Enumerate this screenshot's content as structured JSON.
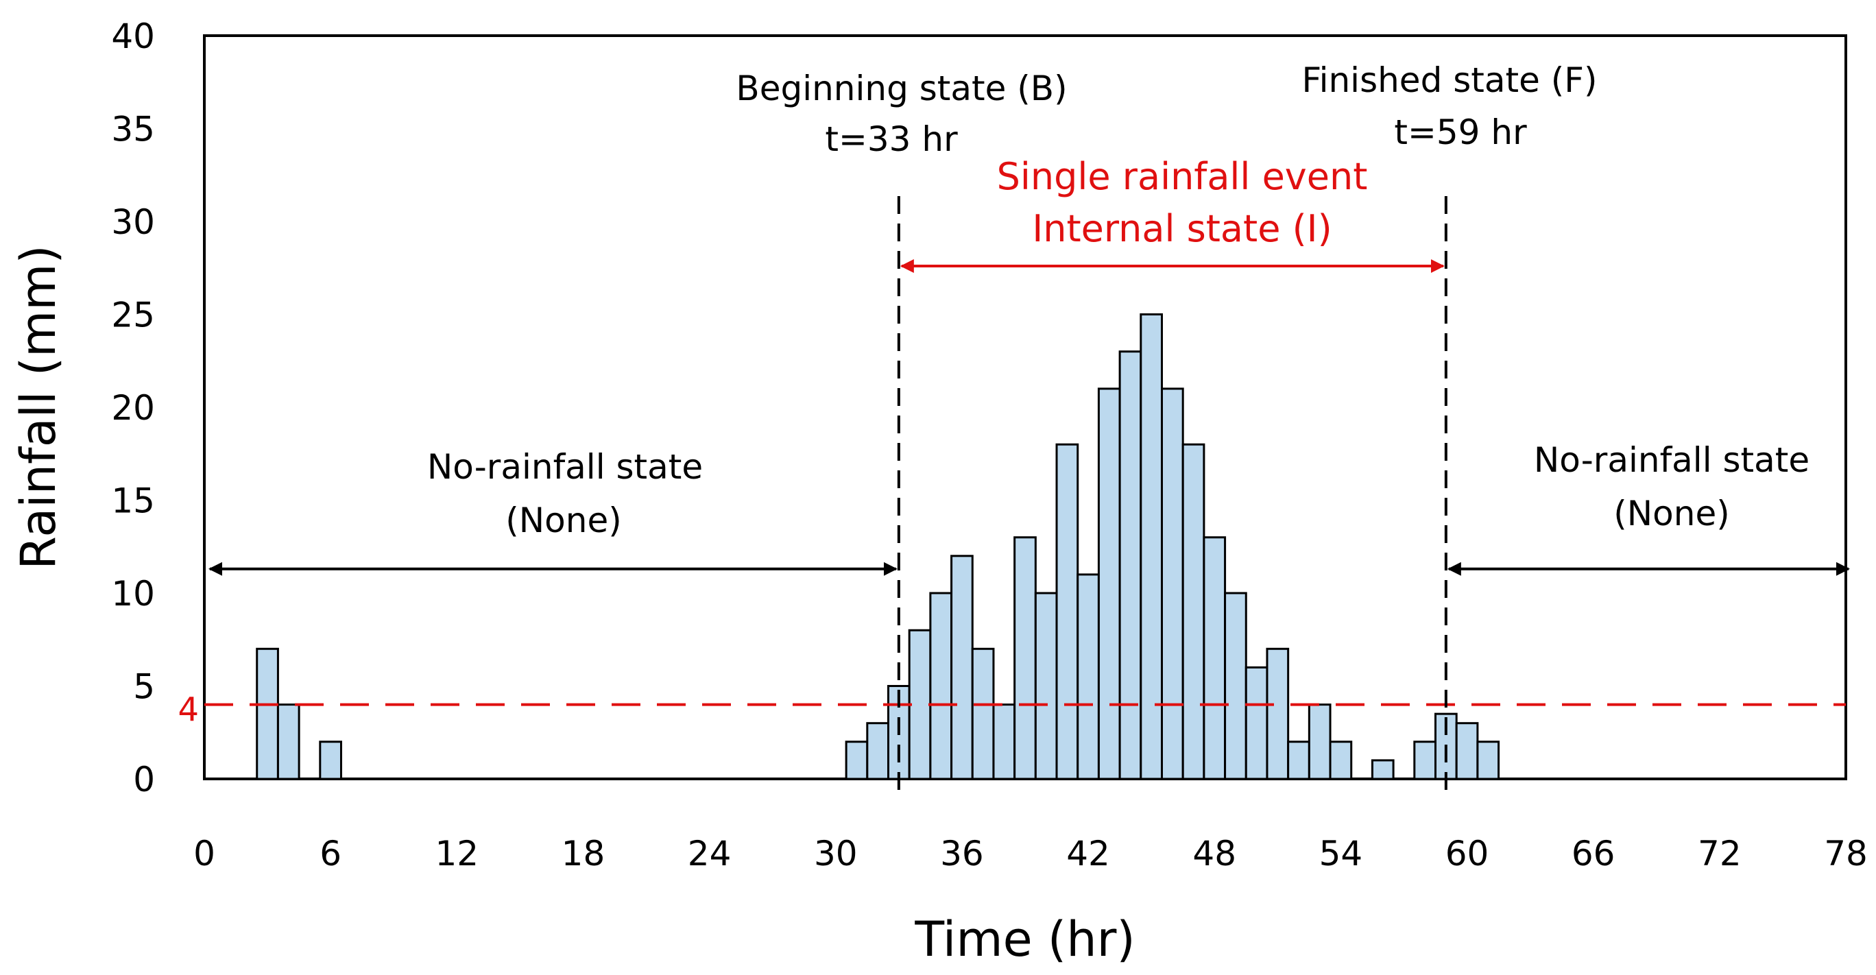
{
  "chart_data": {
    "type": "bar",
    "title": "",
    "xlabel": "Time (hr)",
    "ylabel": "Rainfall (mm)",
    "xlim": [
      0,
      78
    ],
    "ylim": [
      0,
      40
    ],
    "xticks": [
      "0",
      "6",
      "12",
      "18",
      "24",
      "30",
      "36",
      "42",
      "48",
      "54",
      "60",
      "66",
      "72",
      "78"
    ],
    "yticks": [
      "0",
      "5",
      "10",
      "15",
      "20",
      "25",
      "30",
      "35",
      "40"
    ],
    "bar_color": "#bcd9ee",
    "bars": [
      {
        "x": 3,
        "value": 7
      },
      {
        "x": 4,
        "value": 4
      },
      {
        "x": 6,
        "value": 2
      },
      {
        "x": 31,
        "value": 2
      },
      {
        "x": 32,
        "value": 3
      },
      {
        "x": 33,
        "value": 5
      },
      {
        "x": 34,
        "value": 8
      },
      {
        "x": 35,
        "value": 10
      },
      {
        "x": 36,
        "value": 12
      },
      {
        "x": 37,
        "value": 7
      },
      {
        "x": 38,
        "value": 4
      },
      {
        "x": 39,
        "value": 13
      },
      {
        "x": 40,
        "value": 10
      },
      {
        "x": 41,
        "value": 18
      },
      {
        "x": 42,
        "value": 11
      },
      {
        "x": 43,
        "value": 21
      },
      {
        "x": 44,
        "value": 23
      },
      {
        "x": 45,
        "value": 25
      },
      {
        "x": 46,
        "value": 21
      },
      {
        "x": 47,
        "value": 18
      },
      {
        "x": 48,
        "value": 13
      },
      {
        "x": 49,
        "value": 10
      },
      {
        "x": 50,
        "value": 6
      },
      {
        "x": 51,
        "value": 7
      },
      {
        "x": 52,
        "value": 2
      },
      {
        "x": 53,
        "value": 4
      },
      {
        "x": 54,
        "value": 2
      },
      {
        "x": 56,
        "value": 1
      },
      {
        "x": 58,
        "value": 2
      },
      {
        "x": 59,
        "value": 3.5
      },
      {
        "x": 60,
        "value": 3
      },
      {
        "x": 61,
        "value": 2
      }
    ],
    "threshold": {
      "value": 4,
      "label": "4",
      "color": "#e01010"
    },
    "markers": [
      {
        "name": "beginning",
        "x": 33,
        "label_line1": "Beginning state (B)",
        "label_line2": "t=33 hr"
      },
      {
        "name": "finished",
        "x": 59,
        "label_line1": "Finished state (F)",
        "label_line2": "t=59 hr"
      }
    ],
    "annotations": {
      "left_state_line1": "No-rainfall state",
      "left_state_line2": "(None)",
      "right_state_line1": "No-rainfall state",
      "right_state_line2": "(None)",
      "event_line1": "Single rainfall event",
      "event_line2": "Internal state (I)",
      "event_color": "#e01010",
      "state_arrow_y": 11.3,
      "event_arrow_y": 27.6
    }
  }
}
